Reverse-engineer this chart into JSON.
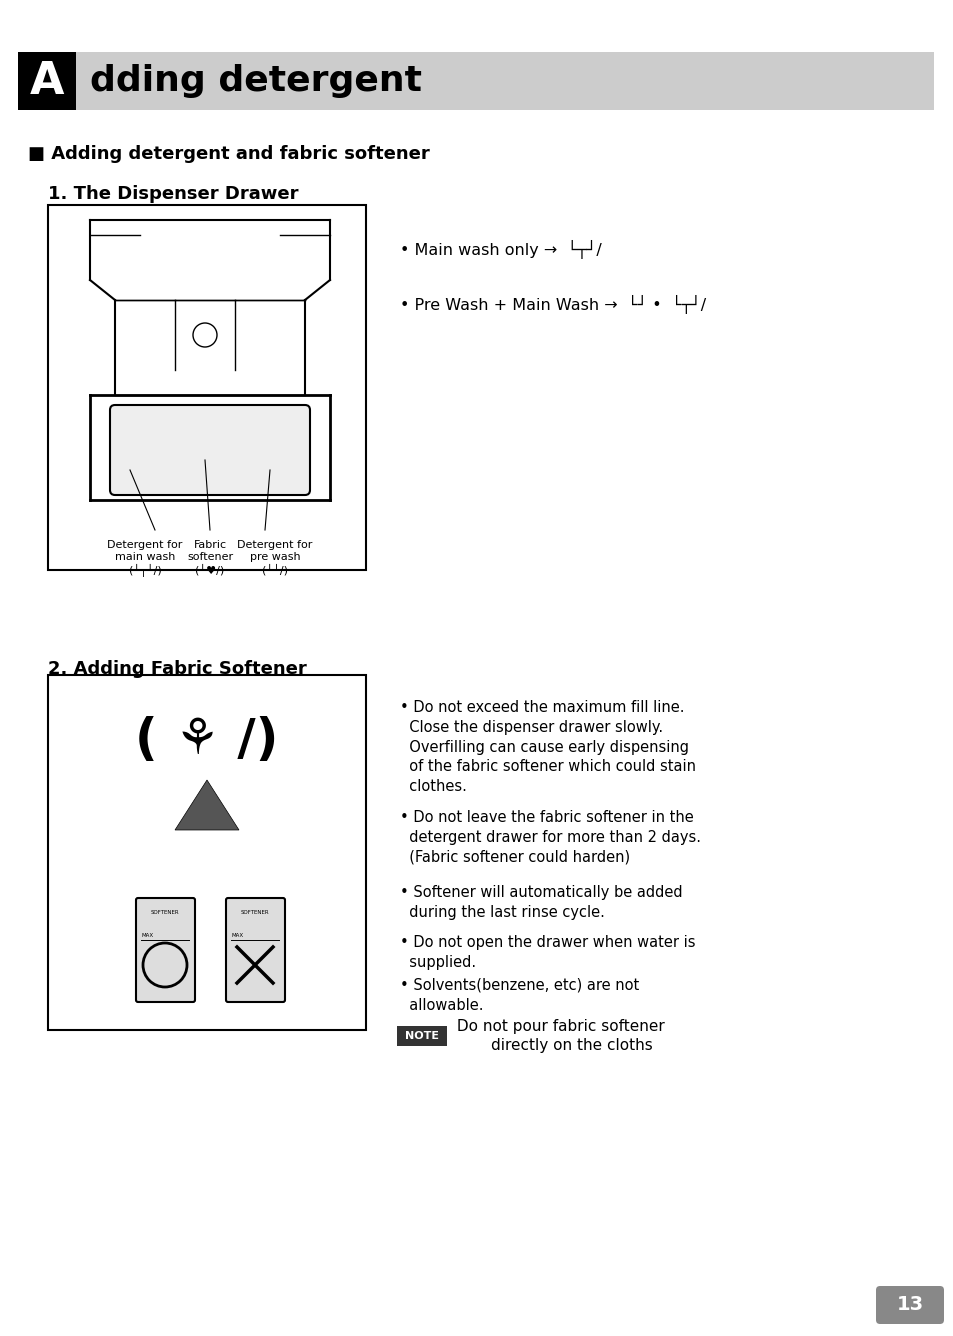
{
  "bg_color": "#ffffff",
  "page_bg": "#ffffff",
  "title_bar_color": "#cccccc",
  "title_bar_black": "#000000",
  "title_text": "dding detergent",
  "title_letter": "A",
  "section_header": "■ Adding detergent and fabric softener",
  "subsection1": "1. The Dispenser Drawer",
  "subsection2": "2. Adding Fabric Softener",
  "bullet1_line1": "• Main wash only →  └┬┘/",
  "bullet1_line2": "• Pre Wash + Main Wash →  └┘ / •  └┬┘/",
  "label1": "Detergent for\nmain wash\n(└┬┘/)",
  "label2": "Fabric\nsoftener\n(└💐/)",
  "label3": "Detergent for\npre wash\n(└┘/)",
  "bullet2_texts": [
    "• Do not exceed the maximum fill line.\n  Close the dispenser drawer slowly.\n  Overfilling can cause early dispensing\n  of the fabric softener which could stain\n  clothes.",
    "• Do not leave the fabric softener in the\n  detergent drawer for more than 2 days.\n  (Fabric softener could harden)",
    "• Softener will automatically be added\n  during the last rinse cycle.",
    "• Do not open the drawer when water is\n  supplied.",
    "• Solvents(benzene, etc) are not\n  allowable."
  ],
  "note_text": "Do not pour fabric softener\n        directly on the cloths",
  "page_number": "13"
}
